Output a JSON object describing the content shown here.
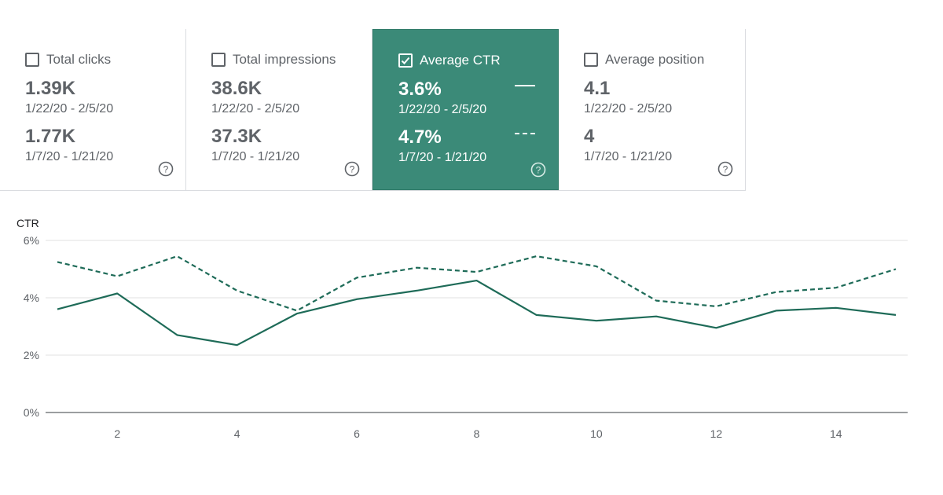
{
  "metrics": [
    {
      "label": "Total clicks",
      "current_value": "1.39K",
      "current_range": "1/22/20 - 2/5/20",
      "previous_value": "1.77K",
      "previous_range": "1/7/20 - 1/21/20",
      "selected": false
    },
    {
      "label": "Total impressions",
      "current_value": "38.6K",
      "current_range": "1/22/20 - 2/5/20",
      "previous_value": "37.3K",
      "previous_range": "1/7/20 - 1/21/20",
      "selected": false
    },
    {
      "label": "Average CTR",
      "current_value": "3.6%",
      "current_range": "1/22/20 - 2/5/20",
      "previous_value": "4.7%",
      "previous_range": "1/7/20 - 1/21/20",
      "selected": true
    },
    {
      "label": "Average position",
      "current_value": "4.1",
      "current_range": "1/22/20 - 2/5/20",
      "previous_value": "4",
      "previous_range": "1/7/20 - 1/21/20",
      "selected": false
    }
  ],
  "icons": {
    "checkbox": "checkbox-icon",
    "help": "help-circle-icon"
  },
  "colors": {
    "accent": "#3b8a78",
    "line": "#1e6b58",
    "grid": "#e0e0e0",
    "text": "#5f6368"
  },
  "chart_data": {
    "type": "line",
    "ylabel": "CTR",
    "ylim": [
      0,
      6
    ],
    "yticks": [
      0,
      2,
      4,
      6
    ],
    "ytick_labels": [
      "0%",
      "2%",
      "4%",
      "6%"
    ],
    "xlim": [
      1,
      15
    ],
    "xticks": [
      2,
      4,
      6,
      8,
      10,
      12,
      14
    ],
    "xtick_labels": [
      "2",
      "4",
      "6",
      "8",
      "10",
      "12",
      "14"
    ],
    "grid": true,
    "series": [
      {
        "style": "solid",
        "x": [
          1,
          2,
          3,
          4,
          5,
          6,
          7,
          8,
          9,
          10,
          11,
          12,
          13,
          14,
          15
        ],
        "values": [
          3.6,
          4.15,
          2.7,
          2.35,
          3.45,
          3.95,
          4.25,
          4.6,
          3.4,
          3.2,
          3.35,
          2.95,
          3.55,
          3.65,
          3.4
        ]
      },
      {
        "style": "dashed",
        "x": [
          1,
          2,
          3,
          4,
          5,
          6,
          7,
          8,
          9,
          10,
          11,
          12,
          13,
          14,
          15
        ],
        "values": [
          5.25,
          4.75,
          5.45,
          4.25,
          3.55,
          4.7,
          5.05,
          4.9,
          5.45,
          5.1,
          3.9,
          3.7,
          4.2,
          4.35,
          5.0
        ]
      }
    ]
  }
}
